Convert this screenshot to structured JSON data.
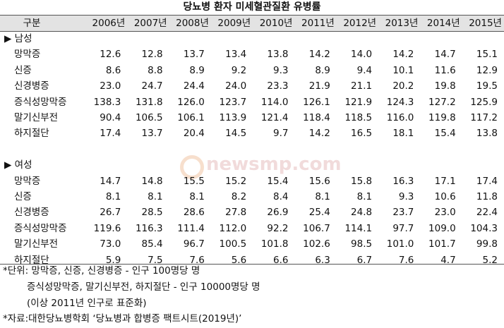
{
  "title": "당뇨병 환자 미세혈관질환 유병률",
  "watermark": "newsmp.com",
  "table": {
    "header": [
      "구분",
      "2006년",
      "2007년",
      "2008년",
      "2009년",
      "2010년",
      "2011년",
      "2012년",
      "2013년",
      "2014년",
      "2015년"
    ],
    "sections": [
      {
        "label": "▶ 남성",
        "rows": [
          {
            "label": "망막증",
            "values": [
              "12.6",
              "12.8",
              "13.7",
              "13.4",
              "13.8",
              "14.2",
              "14.0",
              "14.2",
              "14.7",
              "15.1"
            ]
          },
          {
            "label": "신증",
            "values": [
              "8.6",
              "8.8",
              "8.9",
              "9.2",
              "9.3",
              "8.9",
              "9.4",
              "10.1",
              "11.6",
              "12.9"
            ]
          },
          {
            "label": "신경병증",
            "values": [
              "23.0",
              "24.7",
              "24.4",
              "24.0",
              "23.3",
              "21.9",
              "21.1",
              "20.2",
              "19.8",
              "19.5"
            ]
          },
          {
            "label": "증식성망막증",
            "values": [
              "138.3",
              "131.8",
              "126.0",
              "123.7",
              "114.0",
              "126.1",
              "121.9",
              "124.3",
              "127.2",
              "125.9"
            ]
          },
          {
            "label": "말기신부전",
            "values": [
              "90.4",
              "106.5",
              "106.1",
              "113.9",
              "121.4",
              "118.4",
              "118.5",
              "116.0",
              "119.8",
              "117.2"
            ]
          },
          {
            "label": "하지절단",
            "values": [
              "17.4",
              "13.7",
              "20.4",
              "14.5",
              "9.7",
              "14.2",
              "16.5",
              "18.1",
              "15.4",
              "13.8"
            ]
          }
        ]
      },
      {
        "label": "▶ 여성",
        "rows": [
          {
            "label": "망막증",
            "values": [
              "14.7",
              "14.8",
              "15.5",
              "15.2",
              "15.4",
              "15.6",
              "15.8",
              "16.3",
              "17.1",
              "17.4"
            ]
          },
          {
            "label": "신증",
            "values": [
              "8.1",
              "8.1",
              "8.1",
              "8.2",
              "8.4",
              "8.1",
              "8.1",
              "9.3",
              "10.6",
              "11.8"
            ]
          },
          {
            "label": "신경병증",
            "values": [
              "26.7",
              "28.5",
              "28.6",
              "27.8",
              "26.9",
              "25.4",
              "24.8",
              "23.7",
              "23.0",
              "22.4"
            ]
          },
          {
            "label": "증식성망막증",
            "values": [
              "119.6",
              "116.3",
              "111.4",
              "112.0",
              "92.2",
              "106.7",
              "114.1",
              "97.7",
              "109.0",
              "104.3"
            ]
          },
          {
            "label": "말기신부전",
            "values": [
              "73.0",
              "85.4",
              "96.7",
              "100.5",
              "101.8",
              "102.6",
              "98.5",
              "101.0",
              "101.7",
              "99.8"
            ]
          },
          {
            "label": "하지절단",
            "values": [
              "5.9",
              "7.5",
              "7.6",
              "5.6",
              "6.6",
              "6.3",
              "6.7",
              "7.6",
              "4.7",
              "5.2"
            ]
          }
        ]
      }
    ]
  },
  "footnotes": [
    "*단위: 망막증, 신증, 신경병증 - 인구 100명당 명",
    "증식성망막증, 말기신부전, 하지절단 - 인구 10000명당 명",
    "(이상 2011년 인구로 표준화)",
    "*자료:대한당뇨병학회 ‘당뇨병과 합병증 팩트시트(2019년)’"
  ]
}
